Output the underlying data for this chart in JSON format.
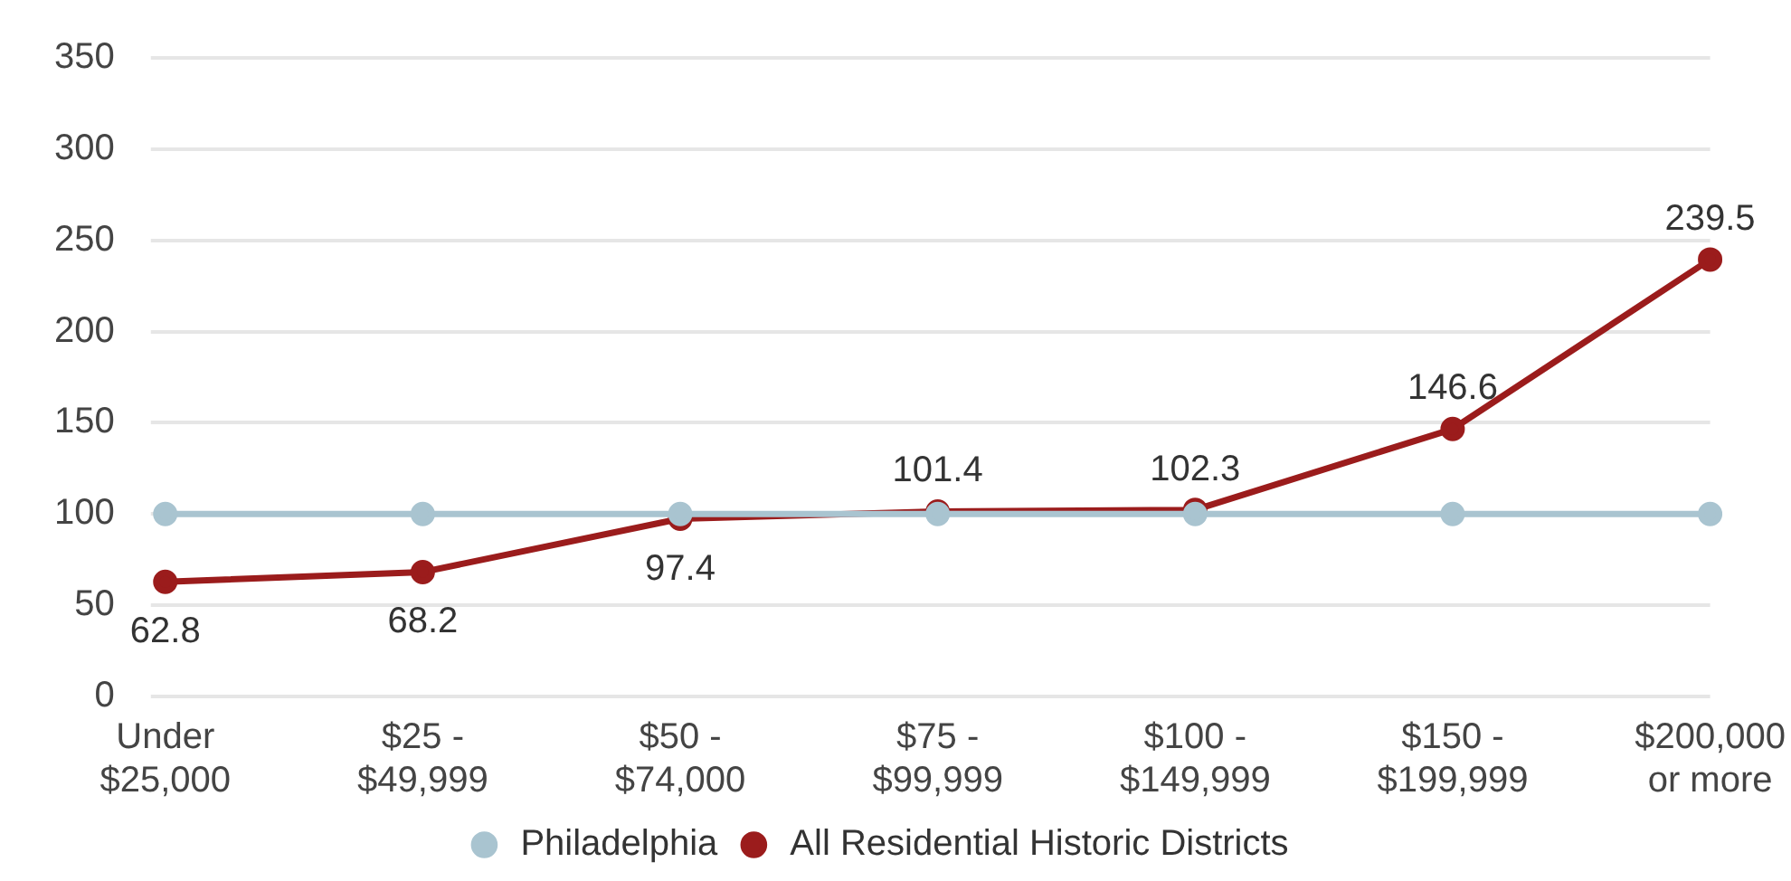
{
  "chart_data": {
    "type": "line",
    "categories": [
      "Under\n$25,000",
      "$25 -\n$49,999",
      "$50 -\n$74,000",
      "$75 -\n$99,999",
      "$100 -\n$149,999",
      "$150 -\n$199,999",
      "$200,000\nor more"
    ],
    "series": [
      {
        "name": "Philadelphia",
        "color": "#a9c4d0",
        "values": [
          100,
          100,
          100,
          100,
          100,
          100,
          100
        ]
      },
      {
        "name": "All Residential Historic Districts",
        "color": "#9b1c1c",
        "values": [
          62.8,
          68.2,
          97.4,
          101.4,
          102.3,
          146.6,
          239.5
        ],
        "value_labels": [
          "62.8",
          "68.2",
          "97.4",
          "101.4",
          "102.3",
          "146.6",
          "239.5"
        ]
      }
    ],
    "ylim": [
      0,
      350
    ],
    "yticks": [
      0,
      50,
      100,
      150,
      200,
      250,
      300,
      350
    ],
    "grid": "y",
    "legend": "bottom",
    "marker": "circle",
    "line_style": "solid"
  }
}
